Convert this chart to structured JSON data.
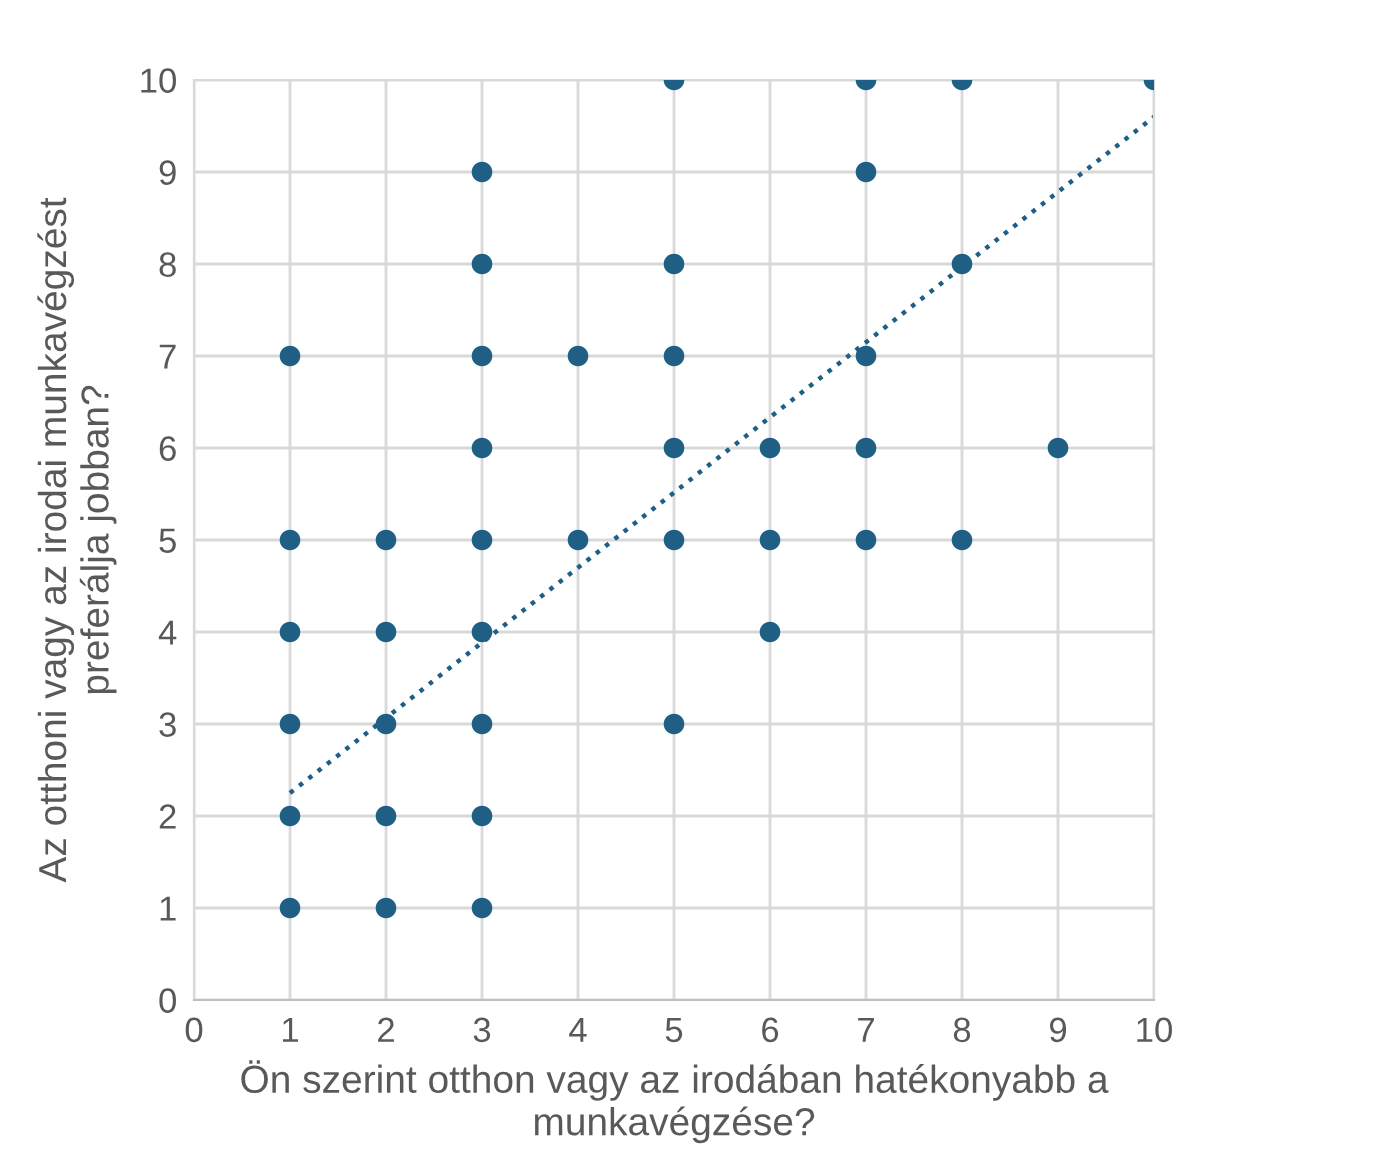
{
  "chart_data": {
    "type": "scatter",
    "xlabel": "Ön szerint otthon vagy az irodában hatékonyabb a munkavégzése?",
    "ylabel": "Az otthoni vagy az irodai munkavégzést preferálja jobban?",
    "xlim": [
      0,
      10
    ],
    "ylim": [
      0,
      10
    ],
    "xticks": [
      0,
      1,
      2,
      3,
      4,
      5,
      6,
      7,
      8,
      9,
      10
    ],
    "yticks": [
      0,
      1,
      2,
      3,
      4,
      5,
      6,
      7,
      8,
      9,
      10
    ],
    "grid": true,
    "legend": false,
    "marker": "circle",
    "series": [
      {
        "color": "#1f5f85",
        "x": [
          1,
          1,
          1,
          1,
          1,
          1,
          2,
          2,
          2,
          2,
          2,
          3,
          3,
          3,
          3,
          3,
          3,
          3,
          3,
          3,
          4,
          4,
          5,
          5,
          5,
          5,
          5,
          5,
          6,
          6,
          6,
          7,
          7,
          7,
          7,
          7,
          8,
          8,
          8,
          9,
          10
        ],
        "values": [
          7,
          5,
          4,
          3,
          2,
          1,
          5,
          4,
          3,
          2,
          1,
          9,
          8,
          7,
          6,
          5,
          4,
          3,
          2,
          1,
          7,
          5,
          10,
          8,
          7,
          6,
          5,
          3,
          6,
          5,
          4,
          10,
          9,
          7,
          6,
          5,
          10,
          8,
          5,
          6,
          10
        ]
      },
      {
        "type": "line",
        "color": "#1f5f85",
        "line_style": "dotted",
        "marker": "none",
        "x": [
          1,
          10
        ],
        "values": [
          2.25,
          9.6
        ]
      }
    ]
  }
}
